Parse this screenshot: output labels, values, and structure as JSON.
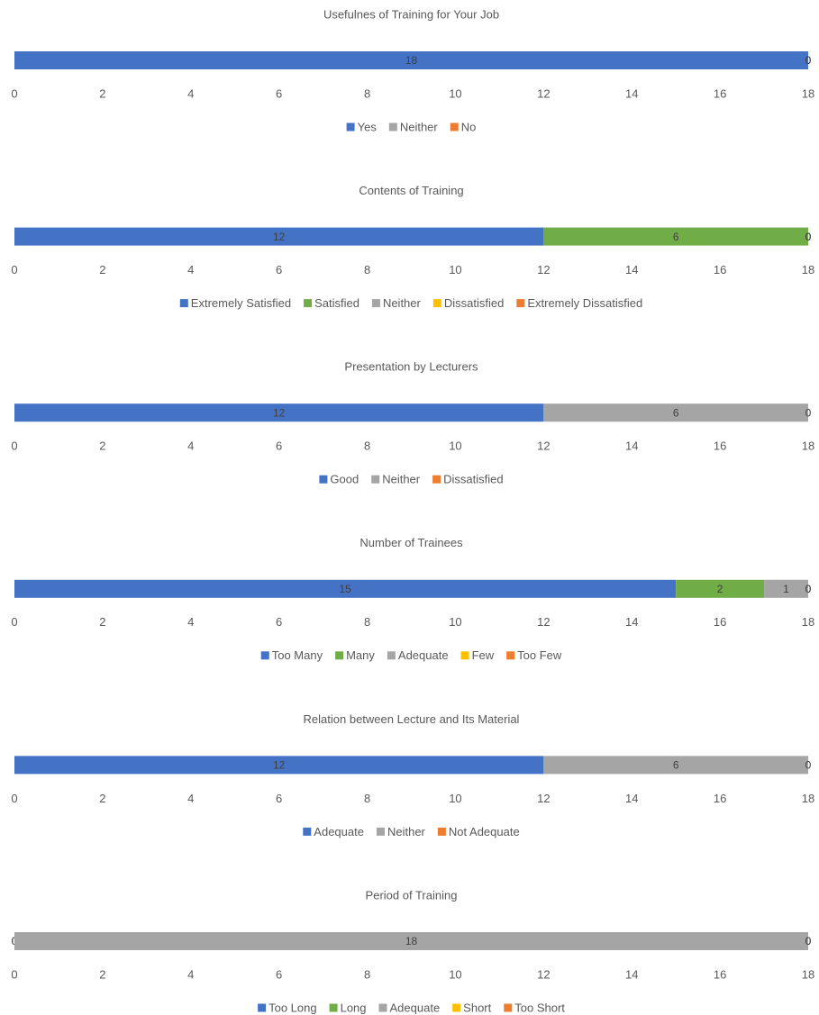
{
  "chart_data": [
    {
      "type": "bar",
      "orientation": "horizontal",
      "stacked": true,
      "title": "Usefulnes of Training for Your Job",
      "series": [
        {
          "name": "Yes",
          "color": "#4472c4",
          "values": [
            18
          ]
        },
        {
          "name": "Neither",
          "color": "#a5a5a5",
          "values": [
            0
          ]
        },
        {
          "name": "No",
          "color": "#ed7d31",
          "values": [
            0
          ]
        }
      ],
      "xlim": [
        0,
        18
      ],
      "xticks": [
        0,
        2,
        4,
        6,
        8,
        10,
        12,
        14,
        16,
        18
      ],
      "legend": "bottom"
    },
    {
      "type": "bar",
      "orientation": "horizontal",
      "stacked": true,
      "title": "Contents of Training",
      "series": [
        {
          "name": "Extremely Satisfied",
          "color": "#4472c4",
          "values": [
            12
          ]
        },
        {
          "name": "Satisfied",
          "color": "#70ad47",
          "values": [
            6
          ]
        },
        {
          "name": "Neither",
          "color": "#a5a5a5",
          "values": [
            0
          ]
        },
        {
          "name": "Dissatisfied",
          "color": "#ffc000",
          "values": [
            0
          ]
        },
        {
          "name": "Extremely Dissatisfied",
          "color": "#ed7d31",
          "values": [
            0
          ]
        }
      ],
      "xlim": [
        0,
        18
      ],
      "xticks": [
        0,
        2,
        4,
        6,
        8,
        10,
        12,
        14,
        16,
        18
      ],
      "legend": "bottom"
    },
    {
      "type": "bar",
      "orientation": "horizontal",
      "stacked": true,
      "title": "Presentation by Lecturers",
      "series": [
        {
          "name": "Good",
          "color": "#4472c4",
          "values": [
            12
          ]
        },
        {
          "name": "Neither",
          "color": "#a5a5a5",
          "values": [
            6
          ]
        },
        {
          "name": "Dissatisfied",
          "color": "#ed7d31",
          "values": [
            0
          ]
        }
      ],
      "xlim": [
        0,
        18
      ],
      "xticks": [
        0,
        2,
        4,
        6,
        8,
        10,
        12,
        14,
        16,
        18
      ],
      "legend": "bottom"
    },
    {
      "type": "bar",
      "orientation": "horizontal",
      "stacked": true,
      "title": "Number of Trainees",
      "series": [
        {
          "name": "Too Many",
          "color": "#4472c4",
          "values": [
            15
          ]
        },
        {
          "name": "Many",
          "color": "#70ad47",
          "values": [
            2
          ]
        },
        {
          "name": "Adequate",
          "color": "#a5a5a5",
          "values": [
            1
          ]
        },
        {
          "name": "Few",
          "color": "#ffc000",
          "values": [
            0
          ]
        },
        {
          "name": "Too Few",
          "color": "#ed7d31",
          "values": [
            0
          ]
        }
      ],
      "xlim": [
        0,
        18
      ],
      "xticks": [
        0,
        2,
        4,
        6,
        8,
        10,
        12,
        14,
        16,
        18
      ],
      "legend": "bottom"
    },
    {
      "type": "bar",
      "orientation": "horizontal",
      "stacked": true,
      "title": "Relation between  Lecture and Its Material",
      "series": [
        {
          "name": "Adequate",
          "color": "#4472c4",
          "values": [
            12
          ]
        },
        {
          "name": "Neither",
          "color": "#a5a5a5",
          "values": [
            6
          ]
        },
        {
          "name": "Not Adequate",
          "color": "#ed7d31",
          "values": [
            0
          ]
        }
      ],
      "xlim": [
        0,
        18
      ],
      "xticks": [
        0,
        2,
        4,
        6,
        8,
        10,
        12,
        14,
        16,
        18
      ],
      "legend": "bottom"
    },
    {
      "type": "bar",
      "orientation": "horizontal",
      "stacked": true,
      "title": "Period of Training",
      "series": [
        {
          "name": "Too Long",
          "color": "#4472c4",
          "values": [
            0
          ]
        },
        {
          "name": "Long",
          "color": "#70ad47",
          "values": [
            0
          ]
        },
        {
          "name": "Adequate",
          "color": "#a5a5a5",
          "values": [
            18
          ]
        },
        {
          "name": "Short",
          "color": "#ffc000",
          "values": [
            0
          ]
        },
        {
          "name": "Too Short",
          "color": "#ed7d31",
          "values": [
            0
          ]
        }
      ],
      "xlim": [
        0,
        18
      ],
      "xticks": [
        0,
        2,
        4,
        6,
        8,
        10,
        12,
        14,
        16,
        18
      ],
      "legend": "bottom"
    }
  ]
}
